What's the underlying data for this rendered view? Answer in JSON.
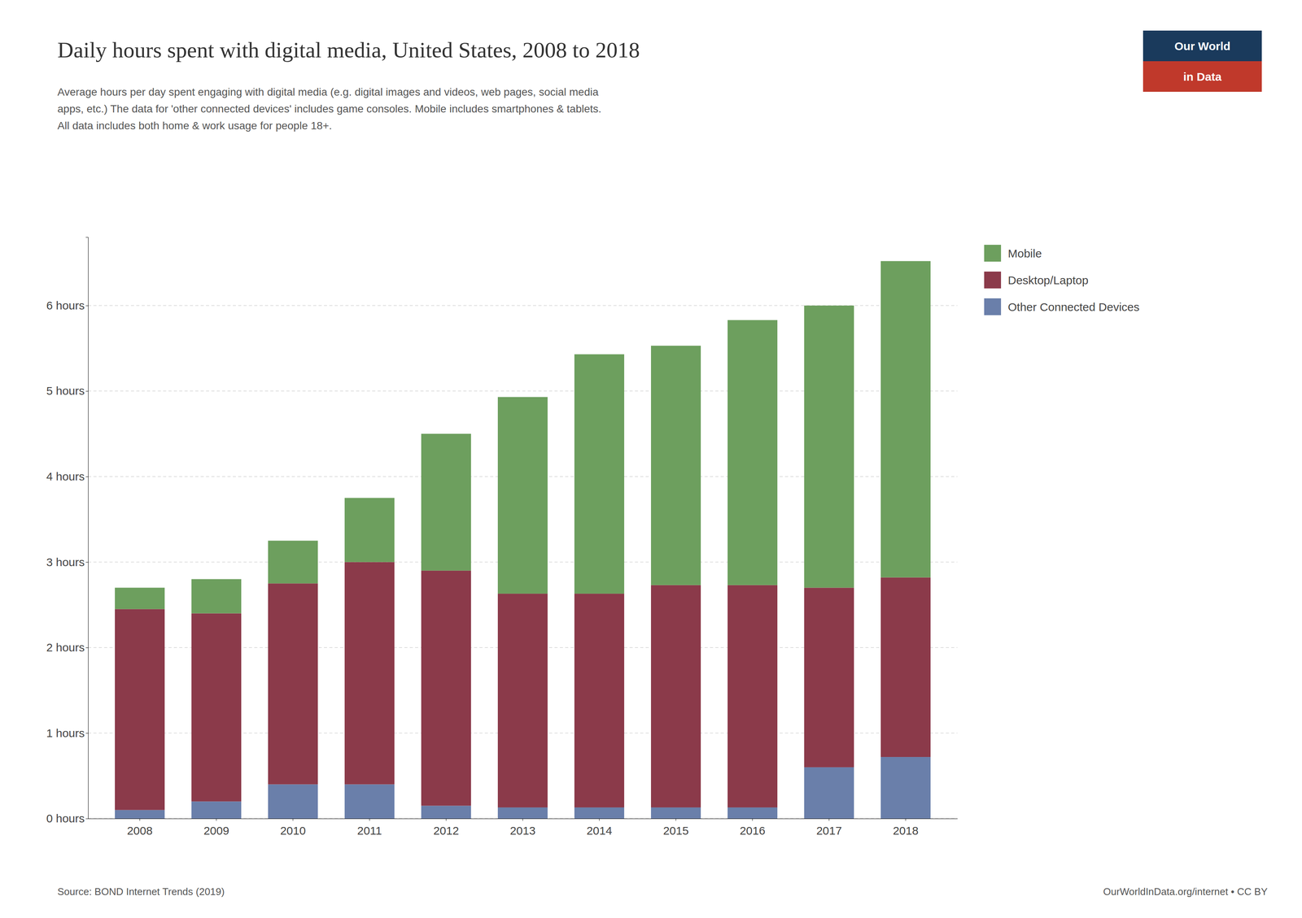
{
  "chart_data": {
    "type": "bar",
    "stacked": true,
    "title": "Daily hours spent with digital media, United States, 2008 to 2018",
    "subtitle": "Average hours per day spent engaging with digital media (e.g. digital images and videos, web pages, social media\napps, etc.) The data for 'other connected devices' includes game consoles. Mobile includes smartphones & tablets.\nAll data includes both home & work usage for people 18+.",
    "categories": [
      "2008",
      "2009",
      "2010",
      "2011",
      "2012",
      "2013",
      "2014",
      "2015",
      "2016",
      "2017",
      "2018"
    ],
    "series": [
      {
        "name": "Other Connected Devices",
        "color": "#6a7faa",
        "values": [
          0.1,
          0.2,
          0.4,
          0.4,
          0.15,
          0.13,
          0.13,
          0.13,
          0.13,
          0.6,
          0.72
        ]
      },
      {
        "name": "Desktop/Laptop",
        "color": "#8b3a4a",
        "values": [
          2.35,
          2.2,
          2.35,
          2.6,
          2.75,
          2.5,
          2.5,
          2.6,
          2.6,
          2.1,
          2.1
        ]
      },
      {
        "name": "Mobile",
        "color": "#6d9f5e",
        "values": [
          0.25,
          0.4,
          0.5,
          0.75,
          1.6,
          2.3,
          2.8,
          2.8,
          3.1,
          3.3,
          3.7
        ]
      }
    ],
    "ylim": [
      0,
      6.8
    ],
    "yticks": [
      {
        "value": 0,
        "label": "0 hours"
      },
      {
        "value": 1,
        "label": "1 hours"
      },
      {
        "value": 2,
        "label": "2 hours"
      },
      {
        "value": 3,
        "label": "3 hours"
      },
      {
        "value": 4,
        "label": "4 hours"
      },
      {
        "value": 5,
        "label": "5 hours"
      },
      {
        "value": 6,
        "label": "6 hours"
      }
    ],
    "grid": true,
    "legend": "right",
    "annotations": [
      {
        "text": "Source: BOND Internet Trends (2019)"
      },
      {
        "text": "OurWorldInData.org/internet • CC BY"
      },
      {
        "text": "Our World",
        "color": "#1a3a5c"
      },
      {
        "text": "in Data",
        "color": "#c0392b"
      }
    ]
  }
}
